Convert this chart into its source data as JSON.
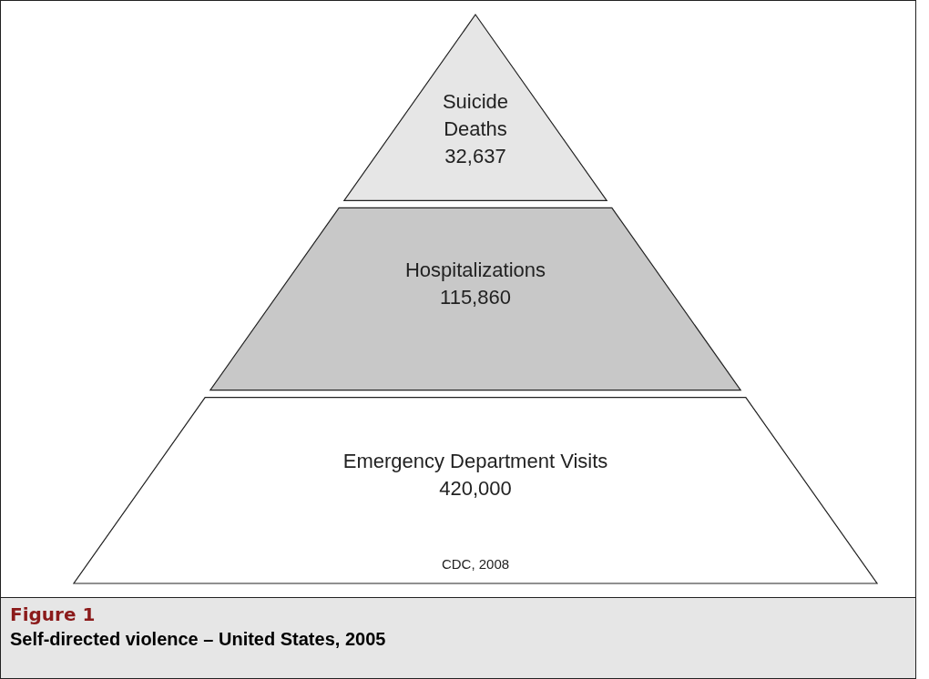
{
  "chart_data": {
    "type": "other",
    "title": "Figure 1",
    "subtitle": "Self-directed violence – United States, 2005",
    "categories": [
      "Suicide Deaths",
      "Hospitalizations",
      "Emergency Department Visits"
    ],
    "values": [
      32637,
      115860,
      420000
    ],
    "value_labels": [
      "32,637",
      "115,860",
      "420,000"
    ],
    "colors": [
      "#e6e6e6",
      "#c8c8c8",
      "#ffffff"
    ],
    "annotations": [
      "CDC, 2008"
    ]
  }
}
